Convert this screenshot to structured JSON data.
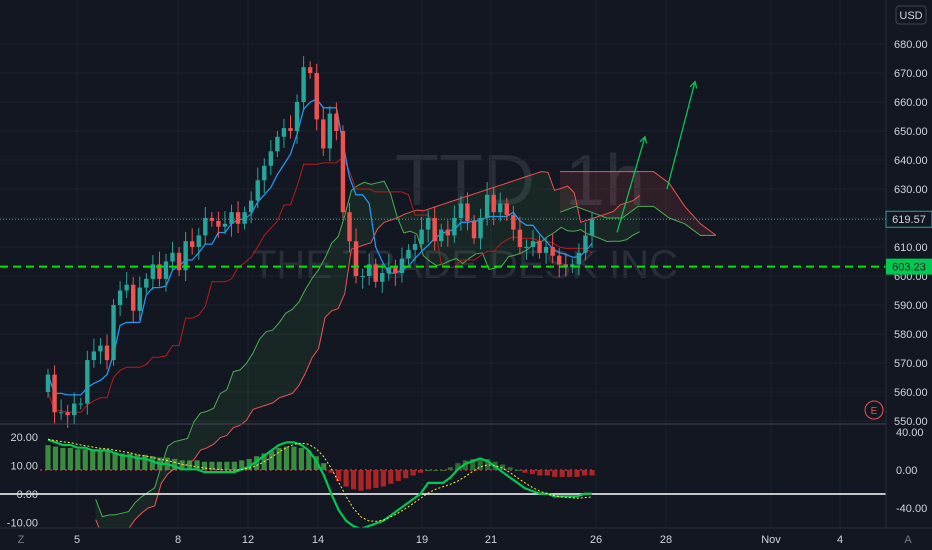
{
  "symbol": "TTD",
  "interval": "1h",
  "company_name": "THE TRADE DESK INC",
  "currency_label": "USD",
  "current_price_label": "619.57",
  "level_label": "603.23",
  "earnings_marker": "E",
  "corner_left": "Z",
  "corner_right": "A",
  "colors": {
    "background": "#131722",
    "up_candle": "#26a69a",
    "down_candle": "#ef5350",
    "tenkan": "#2196f3",
    "kijun": "#b71c1c",
    "span_a": "#4caf50",
    "span_b": "#ef5350",
    "level_line": "#00e600",
    "arrow": "#00c853",
    "price_badge": "#26a69a"
  },
  "chart_data": [
    {
      "type": "candlestick",
      "ylim": [
        548,
        690
      ],
      "y_ticks": [
        "680.00",
        "670.00",
        "660.00",
        "650.00",
        "640.00",
        "630.00",
        "620.00",
        "610.00",
        "600.00",
        "590.00",
        "580.00",
        "570.00",
        "560.00",
        "550.00"
      ],
      "x_ticks": [
        "5",
        "8",
        "12",
        "14",
        "19",
        "21",
        "26",
        "28",
        "Nov",
        "4"
      ],
      "close_path": [
        566,
        553,
        553,
        552,
        556,
        556,
        571,
        574,
        576,
        571,
        590,
        595,
        597,
        588,
        596,
        599,
        604,
        599,
        605,
        608,
        602,
        612,
        610,
        614,
        620,
        619,
        617,
        618,
        622,
        618,
        622,
        626,
        633,
        638,
        643,
        648,
        651,
        650,
        660,
        672,
        670,
        654,
        644,
        656,
        650,
        622,
        612,
        600,
        600,
        604,
        598,
        601,
        603,
        601,
        606,
        609,
        611,
        616,
        620,
        612,
        616,
        614,
        620,
        625,
        619,
        613,
        620,
        628,
        622,
        625,
        621,
        616,
        610,
        610,
        612,
        608,
        610,
        607,
        604,
        603,
        604,
        608,
        614,
        619.57
      ],
      "horizontal_level": 603.23,
      "price_line": 619.57,
      "cloud_top": [
        636,
        636,
        636,
        636,
        636,
        636,
        636,
        632,
        624,
        618,
        614
      ],
      "cloud_bottom": [
        622,
        624,
        622,
        620,
        620,
        624,
        624,
        620,
        618,
        614,
        614
      ],
      "forecast_arrows": [
        [
          615,
          648
        ],
        [
          630,
          667
        ]
      ]
    },
    {
      "type": "histogram",
      "ylim": [
        -15,
        25
      ],
      "y_ticks": [
        "40.00",
        "0.00",
        "-40.00"
      ],
      "left_ticks": [
        "20.00",
        "10.00",
        "0.00",
        "-10.00"
      ],
      "histogram_values": [
        18,
        17,
        16,
        16,
        15,
        15,
        14,
        14,
        14,
        13,
        12,
        12,
        11,
        11,
        10,
        9,
        9,
        8,
        7,
        7,
        7,
        6,
        6,
        6,
        6,
        6,
        7,
        8,
        10,
        12,
        14,
        16,
        17,
        17,
        16,
        14,
        10,
        5,
        -2,
        -8,
        -12,
        -14,
        -15,
        -14,
        -13,
        -12,
        -10,
        -8,
        -6,
        -4,
        -2,
        0,
        0,
        0,
        2,
        5,
        7,
        8,
        9,
        8,
        6,
        4,
        2,
        0,
        -2,
        -3,
        -4,
        -4,
        -5,
        -5,
        -5,
        -5,
        -4,
        -4
      ]
    }
  ]
}
